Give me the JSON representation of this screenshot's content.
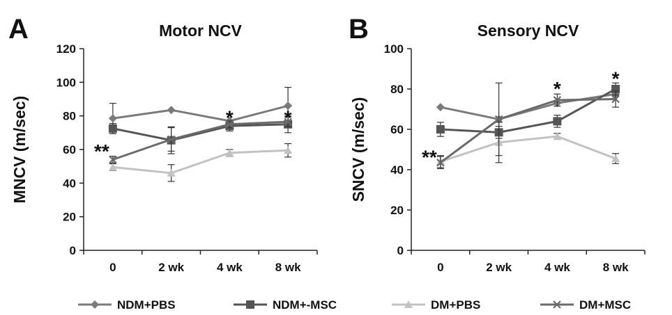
{
  "panels": [
    {
      "letter": "A"
    },
    {
      "letter": "B"
    }
  ],
  "legend": {
    "position": "bottom",
    "items": [
      {
        "label": "NDM+PBS",
        "color": "#7a7a7a",
        "marker": "diamond"
      },
      {
        "label": "NDM+-MSC",
        "color": "#555555",
        "marker": "square"
      },
      {
        "label": "DM+PBS",
        "color": "#c2c2c2",
        "marker": "triangle"
      },
      {
        "label": "DM+MSC",
        "color": "#6a6a6a",
        "marker": "x"
      }
    ]
  },
  "chart_data": [
    {
      "type": "line",
      "title": "Motor NCV",
      "xlabel": "",
      "ylabel": "MNCV (m/sec)",
      "categories": [
        "0",
        "2 wk",
        "4 wk",
        "8 wk"
      ],
      "ylim": [
        0,
        120
      ],
      "yticks": [
        0,
        20,
        40,
        60,
        80,
        100,
        120
      ],
      "grid": false,
      "series": [
        {
          "name": "NDM+PBS",
          "values": [
            78.5,
            83.5,
            77,
            86
          ],
          "errors": [
            9,
            0,
            0,
            11
          ]
        },
        {
          "name": "NDM+-MSC",
          "values": [
            72.5,
            65.5,
            74,
            75
          ],
          "errors": [
            3,
            8,
            3,
            5
          ]
        },
        {
          "name": "DM+PBS",
          "values": [
            49.5,
            46,
            58,
            59.5
          ],
          "errors": [
            2,
            5,
            2,
            4
          ]
        },
        {
          "name": "DM+MSC",
          "values": [
            54,
            66,
            75,
            76.5
          ],
          "errors": [
            2,
            7,
            2,
            3
          ]
        }
      ],
      "annotations": [
        {
          "text": "**",
          "x": "0",
          "y": 60
        },
        {
          "text": "*",
          "x": "4 wk",
          "y": 80
        },
        {
          "text": "*",
          "x": "8 wk",
          "y": 80
        }
      ]
    },
    {
      "type": "line",
      "title": "Sensory NCV",
      "xlabel": "",
      "ylabel": "SNCV (m/sec)",
      "categories": [
        "0",
        "2 wk",
        "4 wk",
        "8 wk"
      ],
      "ylim": [
        0,
        100
      ],
      "yticks": [
        0,
        20,
        40,
        60,
        80,
        100
      ],
      "grid": false,
      "series": [
        {
          "name": "NDM+PBS",
          "values": [
            71,
            65,
            73,
            77.5
          ],
          "errors": [
            0,
            0,
            0,
            0
          ]
        },
        {
          "name": "NDM+-MSC",
          "values": [
            60,
            58.5,
            64,
            80
          ],
          "errors": [
            3.5,
            3,
            3,
            3
          ]
        },
        {
          "name": "DM+PBS",
          "values": [
            44,
            53.5,
            56.5,
            45.5
          ],
          "errors": [
            3,
            10,
            1.5,
            2.5
          ]
        },
        {
          "name": "DM+MSC",
          "values": [
            43.5,
            65,
            74.5,
            75
          ],
          "errors": [
            3,
            18,
            3,
            4
          ]
        }
      ],
      "annotations": [
        {
          "text": "**",
          "x": "0",
          "y": 47
        },
        {
          "text": "*",
          "x": "4 wk",
          "y": 81
        },
        {
          "text": "*",
          "x": "8 wk",
          "y": 86
        }
      ]
    }
  ]
}
